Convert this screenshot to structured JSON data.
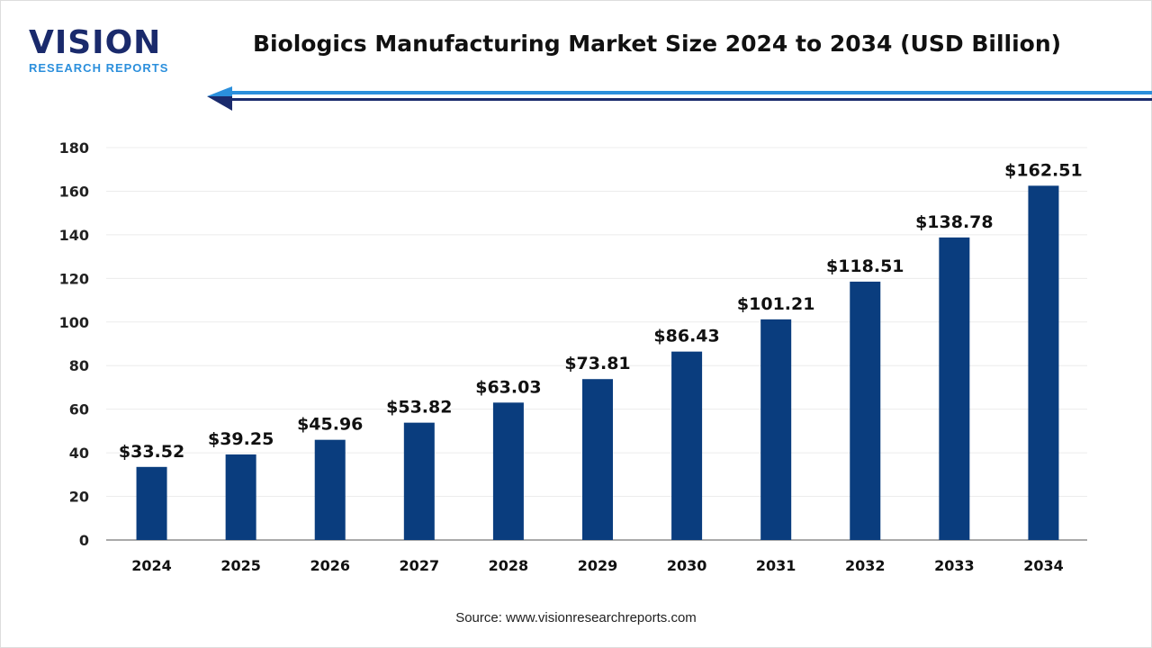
{
  "logo": {
    "name": "VISION",
    "subtitle": "RESEARCH REPORTS"
  },
  "title": "Biologics Manufacturing Market Size 2024 to 2034 (USD Billion)",
  "source": "Source: www.visionresearchreports.com",
  "colors": {
    "bar": "#0a3d7e",
    "accent": "#2b8fdc",
    "navy": "#1a2a6c"
  },
  "chart_data": {
    "type": "bar",
    "title": "Biologics Manufacturing Market Size 2024 to 2034 (USD Billion)",
    "categories": [
      "2024",
      "2025",
      "2026",
      "2027",
      "2028",
      "2029",
      "2030",
      "2031",
      "2032",
      "2033",
      "2034"
    ],
    "values": [
      33.52,
      39.25,
      45.96,
      53.82,
      63.03,
      73.81,
      86.43,
      101.21,
      118.51,
      138.78,
      162.51
    ],
    "data_labels": [
      "$33.52",
      "$39.25",
      "$45.96",
      "$53.82",
      "$63.03",
      "$73.81",
      "$86.43",
      "$101.21",
      "$118.51",
      "$138.78",
      "$162.51"
    ],
    "yticks": [
      0,
      20,
      40,
      60,
      80,
      100,
      120,
      140,
      160,
      180
    ],
    "ylim": [
      0,
      180
    ],
    "grid": true,
    "xlabel": "",
    "ylabel": ""
  }
}
